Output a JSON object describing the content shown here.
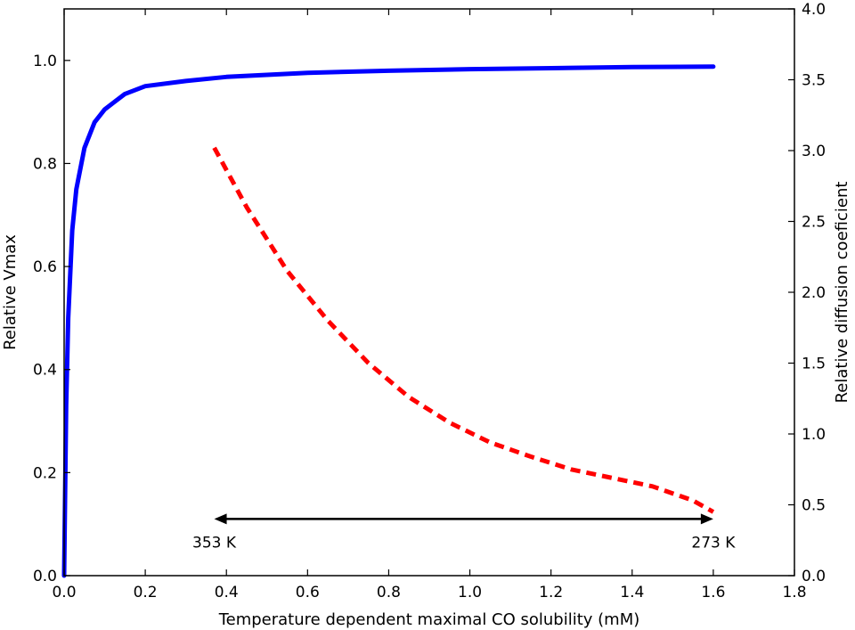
{
  "chart_data": {
    "type": "line",
    "title": "",
    "xlabel": "Temperature dependent maximal CO solubility (mM)",
    "ylabel": "Relative Vmax",
    "y2label": "Relative diffusion coeficient",
    "xlim": [
      0,
      1.8
    ],
    "ylim": [
      0,
      1.1
    ],
    "y2lim": [
      0,
      4.0
    ],
    "xticks": [
      "0.0",
      "0.2",
      "0.4",
      "0.6",
      "0.8",
      "1.0",
      "1.2",
      "1.4",
      "1.6",
      "1.8"
    ],
    "yticks": [
      "0.0",
      "0.2",
      "0.4",
      "0.6",
      "0.8",
      "1.0"
    ],
    "y2ticks": [
      "0.0",
      "0.5",
      "1.0",
      "1.5",
      "2.0",
      "2.5",
      "3.0",
      "3.5",
      "4.0"
    ],
    "grid": false,
    "legend": "none",
    "series": [
      {
        "axis": "left",
        "style": "solid",
        "color": "#0000ff",
        "x": [
          0,
          0.005,
          0.01,
          0.02,
          0.03,
          0.05,
          0.075,
          0.1,
          0.15,
          0.2,
          0.3,
          0.4,
          0.5,
          0.6,
          0.8,
          1.0,
          1.2,
          1.4,
          1.6
        ],
        "y": [
          0,
          0.33,
          0.5,
          0.67,
          0.75,
          0.83,
          0.88,
          0.905,
          0.935,
          0.95,
          0.96,
          0.968,
          0.972,
          0.976,
          0.98,
          0.983,
          0.985,
          0.987,
          0.988
        ]
      },
      {
        "axis": "right",
        "style": "dashed",
        "color": "#ff0000",
        "x": [
          0.37,
          0.45,
          0.55,
          0.65,
          0.75,
          0.85,
          0.95,
          1.05,
          1.15,
          1.25,
          1.35,
          1.45,
          1.55,
          1.6
        ],
        "y": [
          3.02,
          2.6,
          2.15,
          1.8,
          1.5,
          1.26,
          1.08,
          0.94,
          0.84,
          0.75,
          0.69,
          0.63,
          0.53,
          0.45
        ]
      }
    ],
    "annotations": [
      {
        "type": "double-arrow",
        "x_from": 0.37,
        "x_to": 1.6,
        "y2": 0.4,
        "color": "#000000"
      },
      {
        "type": "label",
        "text": "353 K",
        "x": 0.37,
        "anchor": "left-end"
      },
      {
        "type": "label",
        "text": "273 K",
        "x": 1.6,
        "anchor": "right-end"
      }
    ]
  }
}
